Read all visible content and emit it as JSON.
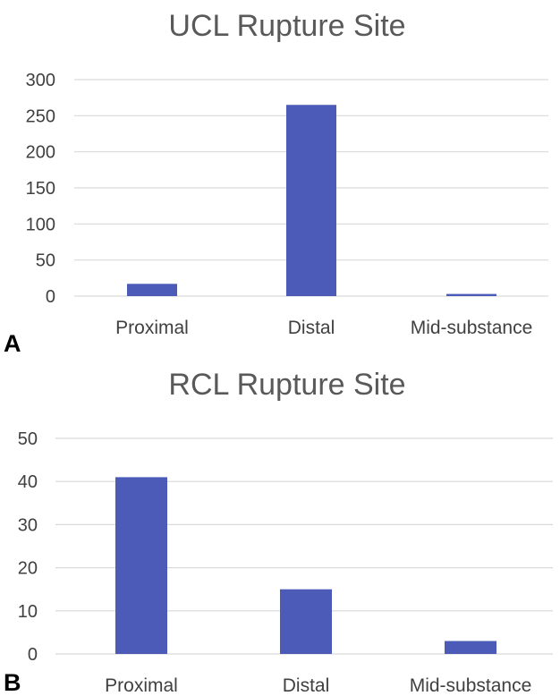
{
  "figure": {
    "panels": [
      "A",
      "B"
    ]
  },
  "chart_data": [
    {
      "type": "bar",
      "title": "UCL Rupture Site",
      "categories": [
        "Proximal",
        "Distal",
        "Mid-substance"
      ],
      "values": [
        17,
        265,
        3
      ],
      "ylim": [
        0,
        300
      ],
      "yticks": [
        0,
        50,
        100,
        150,
        200,
        250,
        300
      ],
      "bar_color": "#4d5bb8",
      "grid": true,
      "legend": "none"
    },
    {
      "type": "bar",
      "title": "RCL Rupture Site",
      "categories": [
        "Proximal",
        "Distal",
        "Mid-substance"
      ],
      "values": [
        41,
        15,
        3
      ],
      "ylim": [
        0,
        50
      ],
      "yticks": [
        0,
        10,
        20,
        30,
        40,
        50
      ],
      "bar_color": "#4d5bb8",
      "grid": true,
      "legend": "none"
    }
  ]
}
